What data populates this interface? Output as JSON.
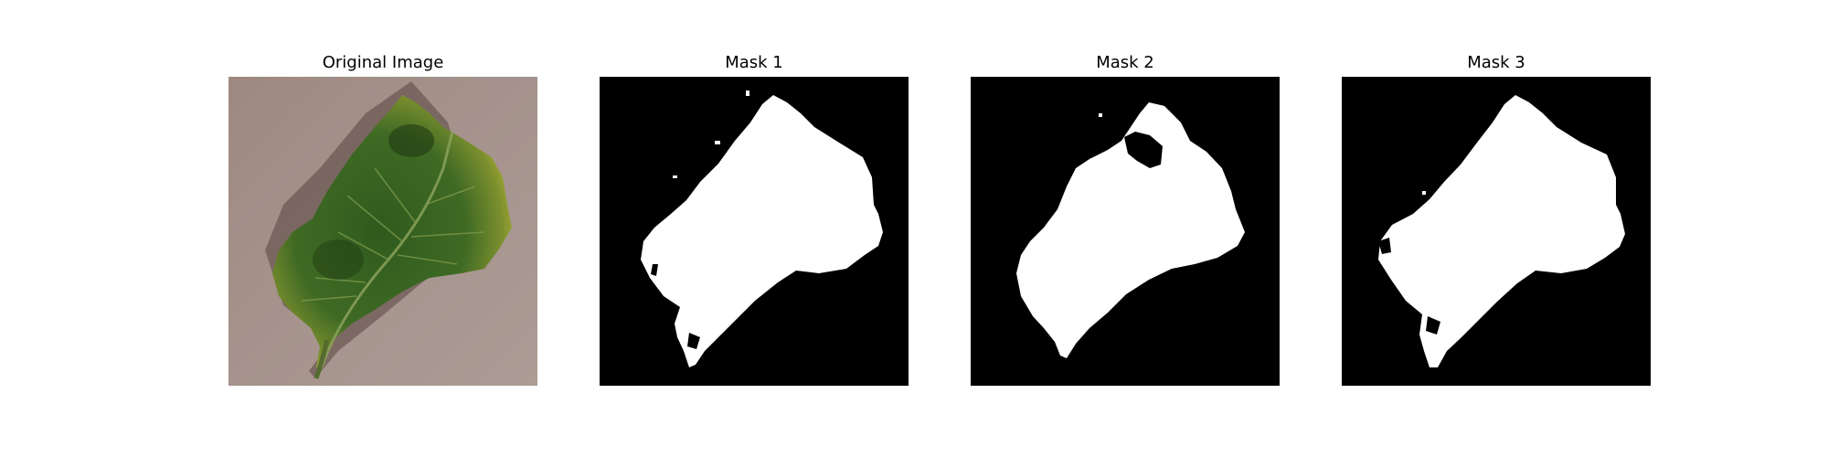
{
  "figure": {
    "panels": [
      {
        "title": "Original Image"
      },
      {
        "title": "Mask 1"
      },
      {
        "title": "Mask 2"
      },
      {
        "title": "Mask 3"
      }
    ]
  },
  "colors": {
    "background": "#ffffff",
    "mask_background": "#000000",
    "mask_foreground": "#ffffff",
    "table_surface": "#a38f86",
    "leaf_green": "#3f6a24",
    "leaf_yellow": "#b5b43a",
    "leaf_dark": "#1f3a12"
  }
}
